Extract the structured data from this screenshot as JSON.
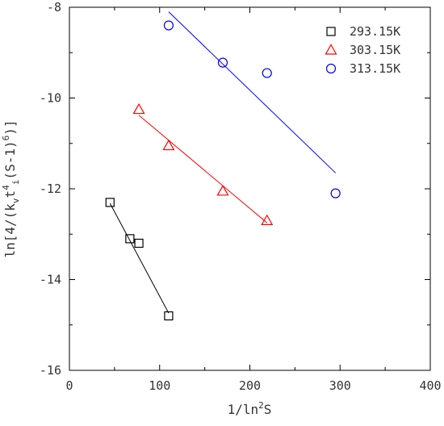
{
  "chart_data": {
    "type": "scatter",
    "title": "",
    "xlabel_parts": {
      "base": "1/ln",
      "sup": "2",
      "tail": "S"
    },
    "ylabel_parts": {
      "prefix": "ln[4/(k",
      "sub1": "v",
      "mid": "t",
      "sup1": "4",
      "sub2": "i",
      "tail": "(S-1)",
      "sup2": "6",
      "close": ")]"
    },
    "xlim": [
      0,
      400
    ],
    "ylim": [
      -16,
      -8
    ],
    "x_ticks": [
      0,
      100,
      200,
      300,
      400
    ],
    "y_ticks": [
      -16,
      -14,
      -12,
      -10,
      -8
    ],
    "x_tick_labels": [
      "0",
      "100",
      "200",
      "300",
      "400"
    ],
    "y_tick_labels": [
      "-16",
      "-14",
      "-12",
      "-10",
      "-8"
    ],
    "grid": false,
    "legend_position": "top-right",
    "series": [
      {
        "name": "293.15K",
        "marker": "square",
        "color": "#000000",
        "points": [
          [
            45,
            -12.3
          ],
          [
            67,
            -13.1
          ],
          [
            77,
            -13.2
          ],
          [
            110,
            -14.8
          ]
        ],
        "fit": [
          [
            45,
            -12.32
          ],
          [
            110,
            -14.74
          ]
        ]
      },
      {
        "name": "303.15K",
        "marker": "triangle",
        "color": "#ff0000",
        "points": [
          [
            77,
            -10.25
          ],
          [
            110,
            -11.05
          ],
          [
            170,
            -12.05
          ],
          [
            219,
            -12.7
          ]
        ],
        "fit": [
          [
            77,
            -10.38
          ],
          [
            219,
            -12.75
          ]
        ]
      },
      {
        "name": "313.15K",
        "marker": "circle",
        "color": "#0000ff",
        "points": [
          [
            110,
            -8.4
          ],
          [
            170,
            -9.22
          ],
          [
            219,
            -9.45
          ],
          [
            295,
            -12.1
          ]
        ],
        "fit": [
          [
            110,
            -8.1
          ],
          [
            295,
            -11.65
          ]
        ]
      }
    ]
  }
}
